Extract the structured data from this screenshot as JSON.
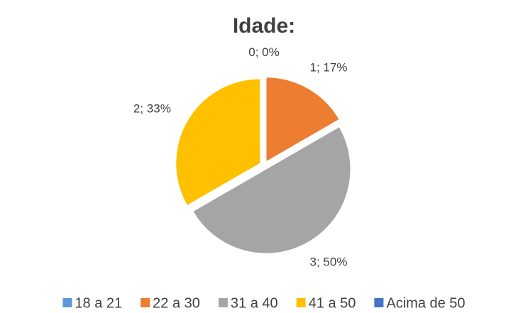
{
  "chart_data": {
    "type": "pie",
    "title": "Idade:",
    "categories": [
      "18 a 21",
      "22 a 30",
      "31 a 40",
      "41 a 50",
      "Acima de 50"
    ],
    "values": [
      0,
      1,
      3,
      2,
      0
    ],
    "value_labels": [
      "0; 0%",
      "1; 17%",
      "3; 50%",
      "2; 33%",
      null
    ],
    "colors": [
      "#5b9bd5",
      "#ed7d31",
      "#a5a5a5",
      "#ffc000",
      "#4472c4"
    ],
    "legend": "bottom"
  }
}
